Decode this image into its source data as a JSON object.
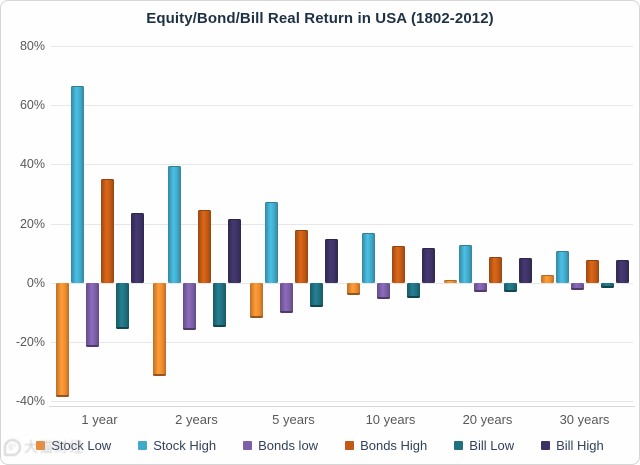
{
  "chart_data": {
    "type": "bar",
    "title": "Equity/Bond/Bill Real Return in USA (1802-2012)",
    "categories": [
      "1 year",
      "2 years",
      "5 years",
      "10 years",
      "20 years",
      "30 years"
    ],
    "series": [
      {
        "name": "Stock Low",
        "color": "#EF8B30",
        "values": [
          -38.6,
          -31.5,
          -11.9,
          -4.1,
          1.0,
          2.6
        ]
      },
      {
        "name": "Stock High",
        "color": "#41A9C9",
        "values": [
          66.6,
          39.6,
          27.3,
          16.9,
          12.6,
          10.6
        ]
      },
      {
        "name": "Bonds low",
        "color": "#7C5FA7",
        "values": [
          -21.9,
          -15.9,
          -10.1,
          -5.4,
          -3.1,
          -2.4
        ]
      },
      {
        "name": "Bonds High",
        "color": "#C25A15",
        "values": [
          35.1,
          24.7,
          17.7,
          12.4,
          8.8,
          7.8
        ]
      },
      {
        "name": "Bill Low",
        "color": "#20707F",
        "values": [
          -15.6,
          -15.1,
          -8.2,
          -5.1,
          -3.0,
          -1.8
        ]
      },
      {
        "name": "Bill High",
        "color": "#3D3264",
        "values": [
          23.7,
          21.6,
          14.9,
          11.6,
          8.3,
          7.6
        ]
      }
    ],
    "y_ticks": [
      "80%",
      "60%",
      "40%",
      "20%",
      "0%",
      "-20%",
      "-40%"
    ],
    "ylim": [
      -40,
      80
    ],
    "xlabel": "",
    "ylabel": "",
    "grid": true,
    "legend_position": "bottom",
    "colors": {
      "title_text": "#1F3245",
      "axis_text": "#595959",
      "legend_text": "#32425A",
      "gridline": "#E7E7E7",
      "background": "#FFFFFF"
    }
  },
  "watermark": {
    "logo": "cat-logo",
    "text": "大猫财经"
  }
}
